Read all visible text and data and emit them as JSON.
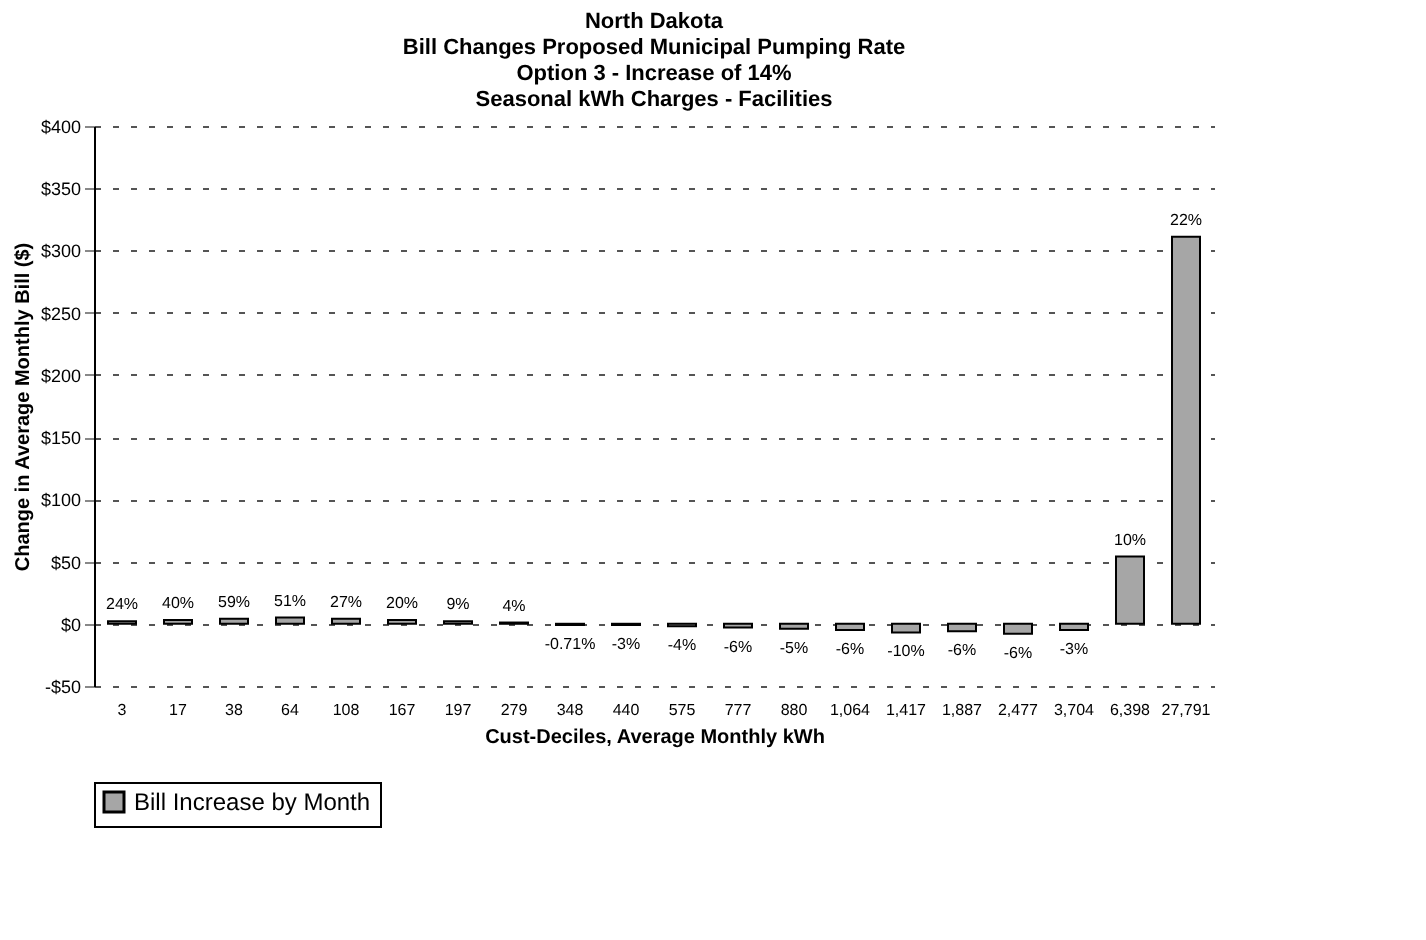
{
  "chart_data": {
    "type": "bar",
    "title": [
      "North Dakota",
      "Bill Changes Proposed Municipal Pumping Rate",
      "Option 3 - Increase of 14%",
      "Seasonal kWh Charges - Facilities"
    ],
    "xlabel": "Cust-Deciles, Average Monthly kWh",
    "ylabel": "Change in Average Monthly Bill ($)",
    "categories": [
      "3",
      "17",
      "38",
      "64",
      "108",
      "167",
      "197",
      "279",
      "348",
      "440",
      "575",
      "777",
      "880",
      "1,064",
      "1,417",
      "1,887",
      "2,477",
      "3,704",
      "6,398",
      "27,791"
    ],
    "series": [
      {
        "name": "Bill Increase by Month",
        "color": "#a6a6a6",
        "values": [
          2,
          3,
          4,
          5,
          4,
          3,
          2,
          1,
          -1,
          -1,
          -2,
          -3,
          -4,
          -5,
          -7,
          -6,
          -8,
          -5,
          54,
          311
        ]
      }
    ],
    "annotations": [
      {
        "text": "24%",
        "x": "3",
        "y": 2
      },
      {
        "text": "40%",
        "x": "17",
        "y": 3
      },
      {
        "text": "59%",
        "x": "38",
        "y": 4
      },
      {
        "text": "51%",
        "x": "64",
        "y": 5
      },
      {
        "text": "27%",
        "x": "108",
        "y": 4
      },
      {
        "text": "20%",
        "x": "167",
        "y": 3
      },
      {
        "text": "9%",
        "x": "197",
        "y": 2
      },
      {
        "text": "4%",
        "x": "279",
        "y": 1
      },
      {
        "text": "-0.71%",
        "x": "348",
        "y": -1
      },
      {
        "text": "-3%",
        "x": "440",
        "y": -1
      },
      {
        "text": "-4%",
        "x": "575",
        "y": -2
      },
      {
        "text": "-6%",
        "x": "777",
        "y": -3
      },
      {
        "text": "-5%",
        "x": "880",
        "y": -4
      },
      {
        "text": "-6%",
        "x": "1,064",
        "y": -5
      },
      {
        "text": "-10%",
        "x": "1,417",
        "y": -7
      },
      {
        "text": "-6%",
        "x": "1,887",
        "y": -6
      },
      {
        "text": "-6%",
        "x": "2,477",
        "y": -8
      },
      {
        "text": "-3%",
        "x": "3,704",
        "y": -5
      },
      {
        "text": "10%",
        "x": "6,398",
        "y": 54
      },
      {
        "text": "22%",
        "x": "27,791",
        "y": 311
      }
    ],
    "ylim": [
      -50,
      400
    ],
    "yticks": [
      {
        "value": -50,
        "label": "-$50"
      },
      {
        "value": 0,
        "label": "$0"
      },
      {
        "value": 50,
        "label": "$50"
      },
      {
        "value": 100,
        "label": "$100"
      },
      {
        "value": 150,
        "label": "$150"
      },
      {
        "value": 200,
        "label": "$200"
      },
      {
        "value": 250,
        "label": "$250"
      },
      {
        "value": 300,
        "label": "$300"
      },
      {
        "value": 350,
        "label": "$350"
      },
      {
        "value": 400,
        "label": "$400"
      }
    ],
    "grid": "y",
    "legend": "bottom"
  }
}
